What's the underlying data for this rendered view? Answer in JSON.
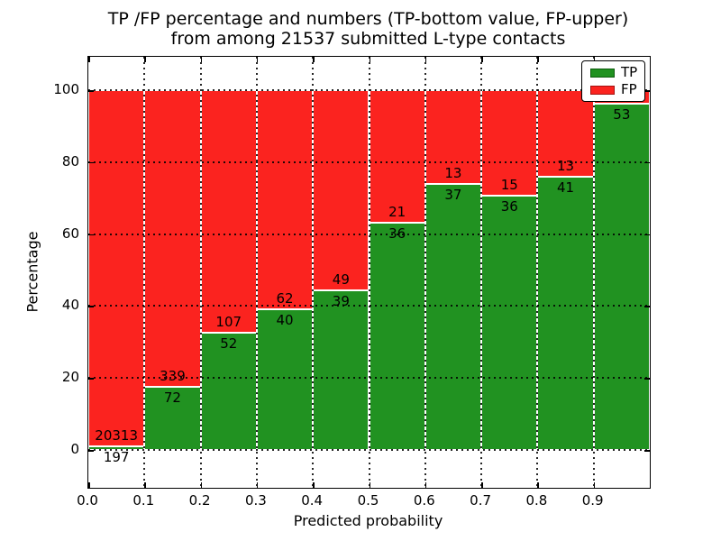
{
  "title": {
    "line1": "TP /FP percentage and numbers (TP-bottom value, FP-upper)",
    "line2": "from among 21537 submitted L-type contacts"
  },
  "axes": {
    "xlabel": "Predicted probability",
    "ylabel": "Percentage",
    "x_tick_labels": [
      "0.0",
      "0.1",
      "0.2",
      "0.3",
      "0.4",
      "0.5",
      "0.6",
      "0.7",
      "0.8",
      "0.9"
    ],
    "y_tick_labels": [
      "0",
      "20",
      "40",
      "60",
      "80",
      "100"
    ],
    "y_tick_values": [
      0,
      20,
      40,
      60,
      80,
      100
    ],
    "xlim": [
      0.0,
      1.0
    ],
    "ylim": [
      -10.5,
      109.3
    ],
    "grid_style": "dotted"
  },
  "legend": {
    "position": "upper-right",
    "items": [
      {
        "label": "TP",
        "color": "#219221"
      },
      {
        "label": "FP",
        "color": "#fb231f"
      }
    ]
  },
  "chart_data": {
    "type": "bar",
    "stacked": true,
    "normalized_to": 100,
    "total_contacts": 21537,
    "bin_edges": [
      0.0,
      0.1,
      0.2,
      0.3,
      0.4,
      0.5,
      0.6,
      0.7,
      0.8,
      0.9,
      1.0
    ],
    "series": [
      {
        "name": "TP",
        "values": [
          197,
          72,
          52,
          40,
          39,
          36,
          37,
          36,
          41,
          53
        ]
      },
      {
        "name": "FP",
        "values": [
          20313,
          339,
          107,
          62,
          49,
          21,
          13,
          15,
          13,
          2
        ]
      }
    ],
    "tp_pct": [
      0.96,
      17.52,
      32.7,
      39.22,
      44.32,
      63.16,
      74.0,
      70.59,
      75.93,
      96.36
    ],
    "tp_labels": [
      "197",
      "72",
      "52",
      "40",
      "39",
      "36",
      "37",
      "36",
      "41",
      "53"
    ],
    "fp_labels": [
      "20313",
      "339",
      "107",
      "62",
      "49",
      "21",
      "13",
      "15",
      "13",
      ""
    ]
  },
  "colors": {
    "tp": "#219221",
    "fp": "#fb231f",
    "grid": "#000000",
    "background": "#ffffff"
  }
}
